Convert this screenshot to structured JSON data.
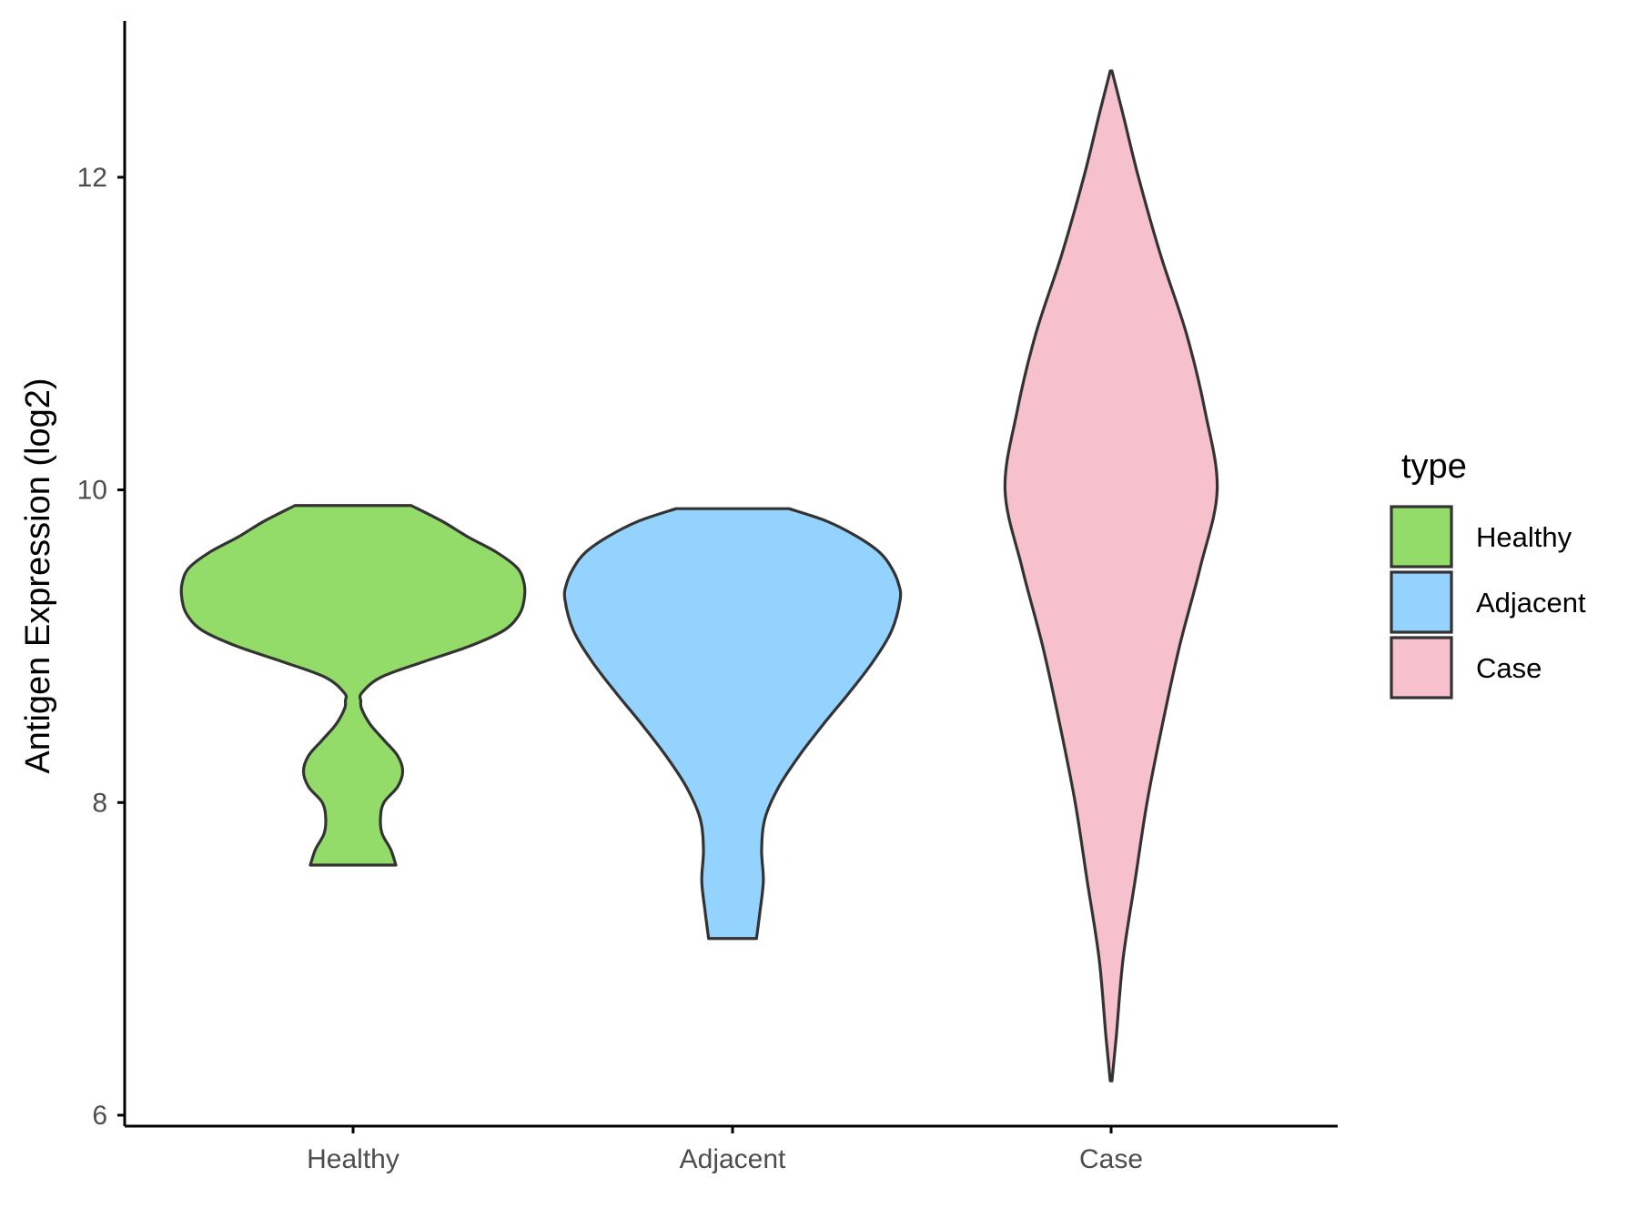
{
  "chart_data": {
    "type": "violin",
    "categories": [
      "Healthy",
      "Adjacent",
      "Case"
    ],
    "ylabel": "Antigen Expression (log2)",
    "xlabel": "",
    "ylim": [
      5.93,
      13.0
    ],
    "yticks": [
      6,
      8,
      10,
      12
    ],
    "ytick_labels": [
      "6",
      "8",
      "10",
      "12"
    ],
    "legend": {
      "title": "type",
      "position": "right",
      "entries": [
        "Healthy",
        "Adjacent",
        "Case"
      ]
    },
    "colors": {
      "Healthy": "#93dc6a",
      "Adjacent": "#94d3fe",
      "Case": "#f6c1cc",
      "outline": "#333333",
      "axis": "#000000"
    },
    "series": [
      {
        "category": "Healthy",
        "min": 7.6,
        "max": 9.9,
        "density": [
          [
            7.6,
            0.25
          ],
          [
            7.7,
            0.22
          ],
          [
            7.8,
            0.17
          ],
          [
            7.9,
            0.16
          ],
          [
            8.0,
            0.18
          ],
          [
            8.1,
            0.26
          ],
          [
            8.2,
            0.29
          ],
          [
            8.3,
            0.26
          ],
          [
            8.4,
            0.18
          ],
          [
            8.5,
            0.1
          ],
          [
            8.6,
            0.05
          ],
          [
            8.65,
            0.045
          ],
          [
            8.7,
            0.05
          ],
          [
            8.8,
            0.16
          ],
          [
            8.9,
            0.41
          ],
          [
            9.0,
            0.68
          ],
          [
            9.1,
            0.88
          ],
          [
            9.2,
            0.97
          ],
          [
            9.3,
            1.0
          ],
          [
            9.4,
            1.0
          ],
          [
            9.5,
            0.96
          ],
          [
            9.6,
            0.84
          ],
          [
            9.7,
            0.67
          ],
          [
            9.8,
            0.52
          ],
          [
            9.9,
            0.34
          ]
        ]
      },
      {
        "category": "Adjacent",
        "min": 7.13,
        "max": 9.88,
        "density": [
          [
            7.13,
            0.14
          ],
          [
            7.3,
            0.16
          ],
          [
            7.5,
            0.18
          ],
          [
            7.7,
            0.17
          ],
          [
            7.9,
            0.19
          ],
          [
            8.1,
            0.27
          ],
          [
            8.3,
            0.39
          ],
          [
            8.5,
            0.53
          ],
          [
            8.7,
            0.68
          ],
          [
            8.9,
            0.82
          ],
          [
            9.1,
            0.93
          ],
          [
            9.3,
            0.98
          ],
          [
            9.4,
            0.97
          ],
          [
            9.5,
            0.93
          ],
          [
            9.6,
            0.86
          ],
          [
            9.7,
            0.73
          ],
          [
            9.8,
            0.55
          ],
          [
            9.88,
            0.33
          ]
        ]
      },
      {
        "category": "Case",
        "min": 6.22,
        "max": 12.68,
        "density": [
          [
            6.22,
            0.005
          ],
          [
            6.5,
            0.03
          ],
          [
            7.0,
            0.07
          ],
          [
            7.5,
            0.14
          ],
          [
            8.0,
            0.21
          ],
          [
            8.5,
            0.3
          ],
          [
            9.0,
            0.4
          ],
          [
            9.5,
            0.52
          ],
          [
            10.0,
            0.62
          ],
          [
            10.5,
            0.55
          ],
          [
            11.0,
            0.44
          ],
          [
            11.5,
            0.29
          ],
          [
            12.0,
            0.16
          ],
          [
            12.4,
            0.07
          ],
          [
            12.68,
            0.005
          ]
        ]
      }
    ]
  }
}
